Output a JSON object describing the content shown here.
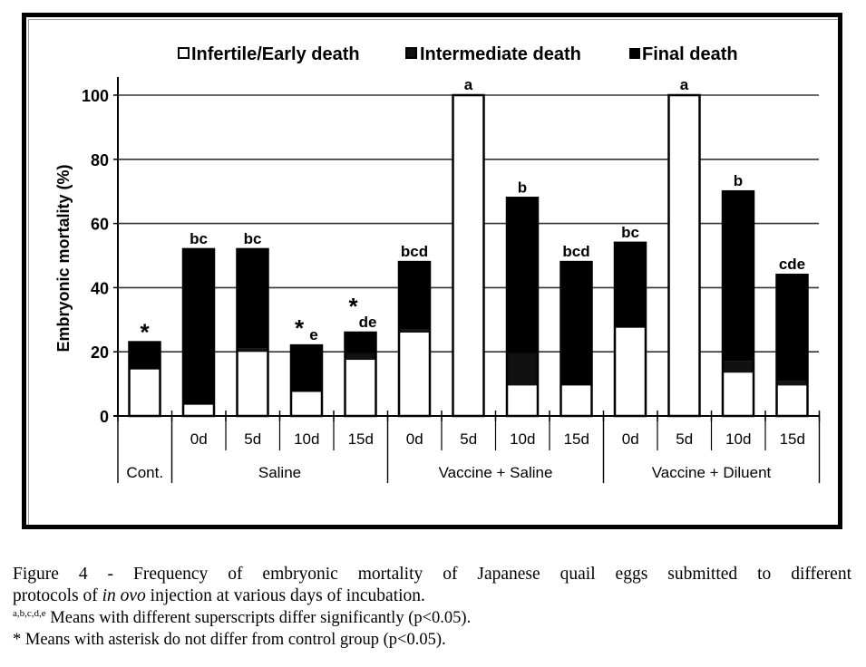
{
  "chart_data": {
    "type": "bar",
    "stacked": true,
    "title": "",
    "xlabel": "",
    "ylabel": "Embryonic mortality (%)",
    "ylim": [
      0,
      100
    ],
    "yticks": [
      0,
      20,
      40,
      60,
      80,
      100
    ],
    "grid": true,
    "legend_position": "top",
    "groups": [
      {
        "label": "Cont.",
        "categories": [
          ""
        ]
      },
      {
        "label": "Saline",
        "categories": [
          "0d",
          "5d",
          "10d",
          "15d"
        ]
      },
      {
        "label": "Vaccine + Saline",
        "categories": [
          "0d",
          "5d",
          "10d",
          "15d"
        ]
      },
      {
        "label": "Vaccine + Diluent",
        "categories": [
          "0d",
          "5d",
          "10d",
          "15d"
        ]
      }
    ],
    "categories": [
      "Cont.",
      "Saline 0d",
      "Saline 5d",
      "Saline 10d",
      "Saline 15d",
      "Vaccine + Saline 0d",
      "Vaccine + Saline 5d",
      "Vaccine + Saline 10d",
      "Vaccine + Saline 15d",
      "Vaccine + Diluent 0d",
      "Vaccine + Diluent 5d",
      "Vaccine + Diluent 10d",
      "Vaccine + Diluent 15d"
    ],
    "series": [
      {
        "name": "Infertile/Early death",
        "color": "#ffffff",
        "values": [
          14.5,
          3.5,
          20,
          7.5,
          17.5,
          26,
          100,
          9.5,
          9.5,
          27.5,
          100,
          13.5,
          9.5
        ]
      },
      {
        "name": "Intermediate death",
        "color": "#111111",
        "values": [
          0,
          0,
          1,
          0,
          2,
          1,
          0,
          10,
          0,
          0,
          0,
          3.5,
          1.5
        ]
      },
      {
        "name": "Final death",
        "color": "#000000",
        "values": [
          8.5,
          48.5,
          31,
          14.5,
          6.5,
          21,
          0,
          48.5,
          38.5,
          26.5,
          0,
          53,
          33
        ]
      }
    ],
    "totals": [
      23,
      52,
      52,
      22,
      26,
      48,
      100,
      68,
      48,
      54,
      100,
      70,
      44
    ],
    "annotations": [
      {
        "letters": "",
        "asterisk": true
      },
      {
        "letters": "bc",
        "asterisk": false
      },
      {
        "letters": "bc",
        "asterisk": false
      },
      {
        "letters": "e",
        "asterisk": true
      },
      {
        "letters": "de",
        "asterisk": true
      },
      {
        "letters": "bcd",
        "asterisk": false
      },
      {
        "letters": "a",
        "asterisk": false
      },
      {
        "letters": "b",
        "asterisk": false
      },
      {
        "letters": "bcd",
        "asterisk": false
      },
      {
        "letters": "bc",
        "asterisk": false
      },
      {
        "letters": "a",
        "asterisk": false
      },
      {
        "letters": "b",
        "asterisk": false
      },
      {
        "letters": "cde",
        "asterisk": false
      }
    ]
  },
  "legend": {
    "items": [
      "Infertile/Early death",
      "Intermediate death",
      "Final death"
    ]
  },
  "caption": {
    "line1": "Figure 4 - Frequency of embryonic mortality of Japanese quail eggs submitted to different",
    "line2_pre": "protocols of ",
    "line2_italic": "in ovo",
    "line2_post": " injection at various days of incubation.",
    "note1_sup": "a,b,c,d,e",
    "note1_text": " Means with different superscripts differ significantly (p<0.05).",
    "note2": "* Means with asterisk do not differ from control group (p<0.05)."
  }
}
